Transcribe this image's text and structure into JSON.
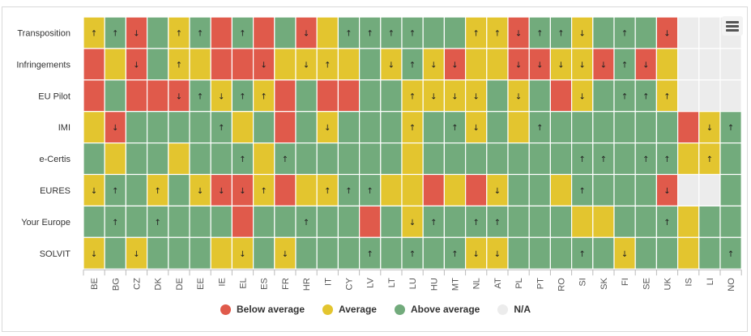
{
  "colors": {
    "below": "#e05a4b",
    "average": "#e3c52f",
    "above": "#72ab7c",
    "na": "#ececec",
    "grid": "#ffffff",
    "text": "#333333",
    "axis_text": "#555555"
  },
  "legend": [
    {
      "key": "below",
      "label": "Below average",
      "color": "#e05a4b"
    },
    {
      "key": "average",
      "label": "Average",
      "color": "#e3c52f"
    },
    {
      "key": "above",
      "label": "Above average",
      "color": "#72ab7c"
    },
    {
      "key": "na",
      "label": "N/A",
      "color": "#ececec"
    }
  ],
  "menu_icon": "hamburger-menu-icon",
  "chart_data": {
    "type": "heatmap",
    "title": "",
    "xlabel": "",
    "ylabel": "",
    "legend_position": "bottom-center",
    "value_codes": {
      "B": "Below average",
      "A": "Average",
      "G": "Above average",
      "N": "N/A"
    },
    "x": [
      "BE",
      "BG",
      "CZ",
      "DK",
      "DE",
      "EE",
      "IE",
      "EL",
      "ES",
      "FR",
      "HR",
      "IT",
      "CY",
      "LV",
      "LT",
      "LU",
      "HU",
      "MT",
      "NL",
      "AT",
      "PL",
      "PT",
      "RO",
      "SI",
      "SK",
      "FI",
      "SE",
      "UK",
      "IS",
      "LI",
      "NO"
    ],
    "y": [
      "Transposition",
      "Infringements",
      "EU Pilot",
      "IMI",
      "e-Certis",
      "EURES",
      "Your Europe",
      "SOLVIT"
    ],
    "status": [
      [
        "A",
        "G",
        "B",
        "G",
        "A",
        "G",
        "B",
        "G",
        "B",
        "G",
        "B",
        "A",
        "G",
        "G",
        "G",
        "G",
        "G",
        "G",
        "A",
        "A",
        "B",
        "G",
        "G",
        "A",
        "G",
        "G",
        "G",
        "B",
        "N",
        "N",
        "N"
      ],
      [
        "B",
        "A",
        "B",
        "G",
        "A",
        "A",
        "B",
        "B",
        "B",
        "A",
        "A",
        "A",
        "A",
        "G",
        "A",
        "G",
        "A",
        "B",
        "A",
        "A",
        "B",
        "B",
        "A",
        "A",
        "B",
        "G",
        "B",
        "A",
        "N",
        "N",
        "N"
      ],
      [
        "B",
        "G",
        "B",
        "B",
        "B",
        "G",
        "A",
        "G",
        "A",
        "B",
        "G",
        "B",
        "B",
        "G",
        "G",
        "A",
        "A",
        "A",
        "A",
        "G",
        "A",
        "G",
        "B",
        "A",
        "G",
        "G",
        "G",
        "A",
        "N",
        "N",
        "N"
      ],
      [
        "A",
        "B",
        "G",
        "G",
        "G",
        "G",
        "G",
        "A",
        "G",
        "B",
        "G",
        "A",
        "G",
        "G",
        "G",
        "A",
        "G",
        "G",
        "A",
        "G",
        "A",
        "G",
        "G",
        "G",
        "G",
        "G",
        "G",
        "G",
        "B",
        "A",
        "G"
      ],
      [
        "G",
        "A",
        "G",
        "G",
        "A",
        "G",
        "G",
        "G",
        "A",
        "G",
        "G",
        "G",
        "G",
        "G",
        "G",
        "A",
        "G",
        "G",
        "G",
        "G",
        "G",
        "G",
        "G",
        "G",
        "G",
        "G",
        "G",
        "G",
        "A",
        "A",
        "G"
      ],
      [
        "A",
        "G",
        "G",
        "A",
        "G",
        "A",
        "B",
        "B",
        "A",
        "B",
        "A",
        "A",
        "G",
        "G",
        "A",
        "A",
        "B",
        "A",
        "B",
        "A",
        "G",
        "G",
        "A",
        "G",
        "G",
        "G",
        "G",
        "B",
        "N",
        "N",
        "G"
      ],
      [
        "G",
        "G",
        "G",
        "G",
        "G",
        "G",
        "G",
        "B",
        "G",
        "G",
        "G",
        "G",
        "G",
        "B",
        "G",
        "A",
        "G",
        "G",
        "G",
        "G",
        "G",
        "G",
        "G",
        "A",
        "A",
        "G",
        "G",
        "G",
        "A",
        "G",
        "G"
      ],
      [
        "A",
        "G",
        "A",
        "G",
        "G",
        "G",
        "A",
        "A",
        "G",
        "A",
        "G",
        "G",
        "G",
        "G",
        "G",
        "G",
        "G",
        "G",
        "A",
        "A",
        "G",
        "G",
        "G",
        "G",
        "G",
        "A",
        "G",
        "G",
        "A",
        "G",
        "G"
      ]
    ],
    "arrows": [
      [
        "↑",
        "↑",
        "↓",
        "",
        "↑",
        "↑",
        "",
        "↑",
        "",
        "",
        "↓",
        "",
        "↑",
        "↑",
        "↑",
        "↑",
        "",
        "",
        "↑",
        "↑",
        "↓",
        "↑",
        "↑",
        "↓",
        "",
        "↑",
        "",
        "↓",
        "",
        "",
        ""
      ],
      [
        "",
        "",
        "↓",
        "",
        "↑",
        "",
        "",
        "",
        "↓",
        "",
        "↓",
        "↑",
        "",
        "",
        "↓",
        "↑",
        "↓",
        "↓",
        "",
        "",
        "↓",
        "↓",
        "↓",
        "↓",
        "↓",
        "↑",
        "↓",
        "",
        "",
        "",
        ""
      ],
      [
        "",
        "",
        "",
        "",
        "↓",
        "↑",
        "↓",
        "↑",
        "↑",
        "",
        "",
        "",
        "",
        "",
        "",
        "↑",
        "↓",
        "↓",
        "↓",
        "",
        "↓",
        "",
        "",
        "↓",
        "",
        "↑",
        "↑",
        "↑",
        "",
        "",
        ""
      ],
      [
        "",
        "↓",
        "",
        "",
        "",
        "",
        "↑",
        "",
        "",
        "",
        "",
        "↓",
        "",
        "",
        "",
        "↑",
        "",
        "↑",
        "↓",
        "",
        "",
        "↑",
        "",
        "",
        "",
        "",
        "",
        "",
        "",
        "↓",
        "↑"
      ],
      [
        "",
        "",
        "",
        "",
        "",
        "",
        "",
        "↑",
        "",
        "↑",
        "",
        "",
        "",
        "",
        "",
        "",
        "",
        "",
        "",
        "",
        "",
        "",
        "",
        "↑",
        "↑",
        "",
        "↑",
        "↑",
        "",
        "↑",
        ""
      ],
      [
        "↓",
        "↑",
        "",
        "↑",
        "",
        "↓",
        "↓",
        "↓",
        "↑",
        "",
        "",
        "↑",
        "↑",
        "↑",
        "",
        "",
        "",
        "",
        "",
        "↓",
        "",
        "",
        "",
        "↑",
        "",
        "",
        "",
        "↓",
        "",
        "",
        ""
      ],
      [
        "",
        "↑",
        "",
        "↑",
        "",
        "",
        "",
        "",
        "",
        "",
        "↑",
        "",
        "",
        "",
        "",
        "↓",
        "↑",
        "",
        "↑",
        "↑",
        "",
        "",
        "",
        "",
        "",
        "",
        "",
        "↑",
        "",
        "",
        ""
      ],
      [
        "↓",
        "",
        "↓",
        "",
        "",
        "",
        "",
        "↓",
        "",
        "↓",
        "",
        "",
        "",
        "↑",
        "",
        "↑",
        "",
        "↑",
        "↓",
        "↓",
        "",
        "",
        "",
        "↑",
        "",
        "↓",
        "",
        "",
        "",
        "",
        "↑"
      ]
    ]
  }
}
